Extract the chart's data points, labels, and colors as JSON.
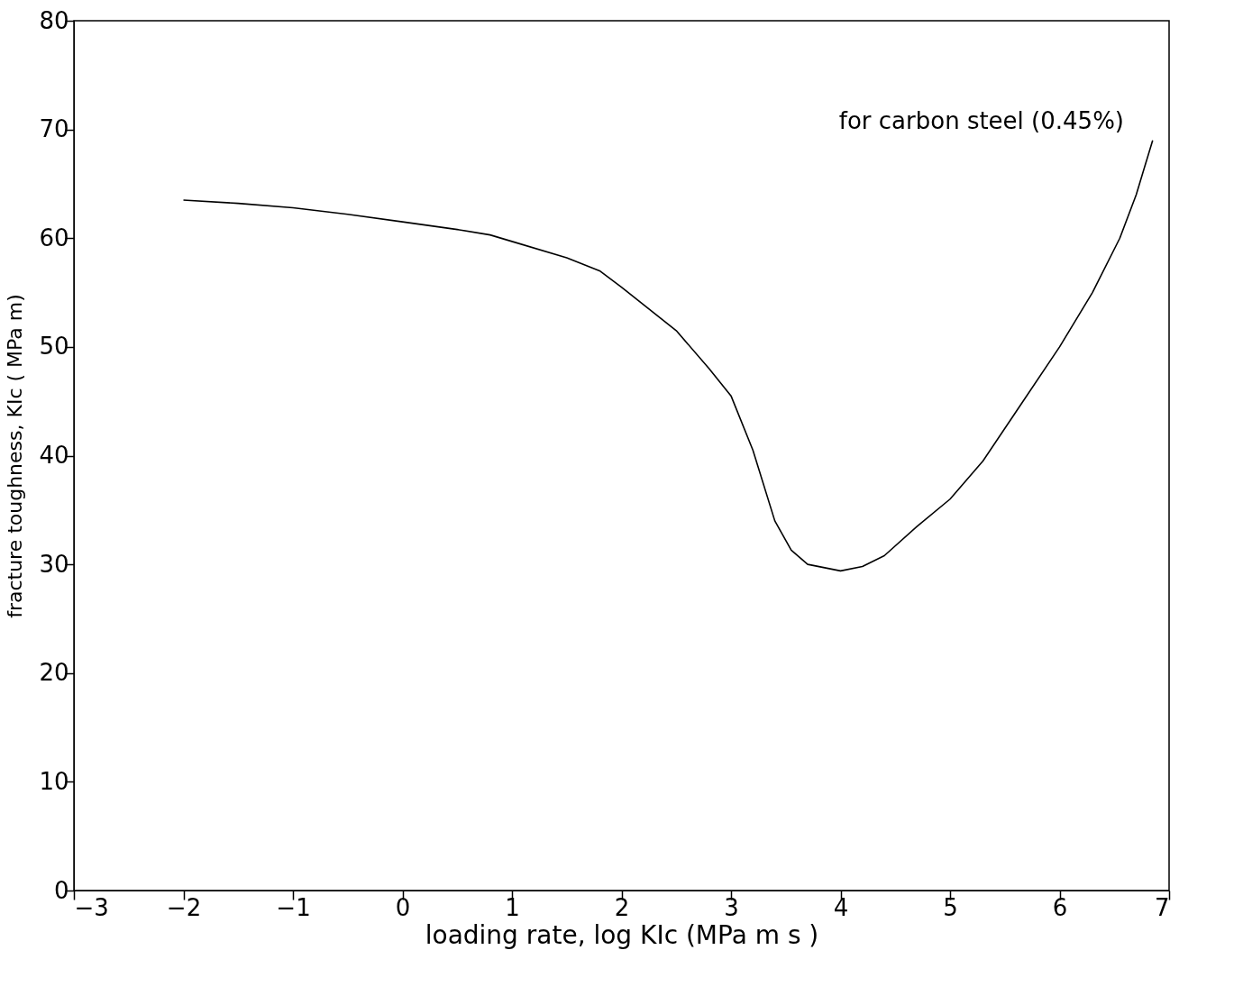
{
  "chart_data": {
    "type": "line",
    "xlabel": "loading rate, log KIc (MPa m s )",
    "ylabel": "fracture toughness, KIc ( MPa m)",
    "annotations": [
      "for carbon steel (0.45%)"
    ],
    "x": [
      -2,
      -1.5,
      -1,
      -0.5,
      0,
      0.5,
      0.8,
      1,
      1.5,
      1.8,
      2,
      2.5,
      2.8,
      3,
      3.2,
      3.4,
      3.55,
      3.7,
      4,
      4.2,
      4.4,
      4.7,
      5,
      5.3,
      5.6,
      6,
      6.3,
      6.55,
      6.7,
      6.85
    ],
    "series": [
      {
        "color": "#000000",
        "values": [
          63.5,
          63.2,
          62.8,
          62.2,
          61.5,
          60.8,
          60.3,
          59.7,
          58.2,
          57,
          55.5,
          51.5,
          48,
          45.5,
          40.5,
          34,
          31.3,
          30,
          29.4,
          29.8,
          30.8,
          33.5,
          36,
          39.5,
          44,
          50,
          55,
          60,
          64,
          69
        ]
      }
    ],
    "xlim": [
      -3,
      7
    ],
    "ylim": [
      0,
      80
    ],
    "xticks": [
      -3,
      -2,
      -1,
      0,
      1,
      2,
      3,
      4,
      5,
      6,
      7
    ],
    "yticks": [
      0,
      10,
      20,
      30,
      40,
      50,
      60,
      70,
      80
    ],
    "grid": false,
    "marker": "none",
    "line_style": "solid"
  }
}
